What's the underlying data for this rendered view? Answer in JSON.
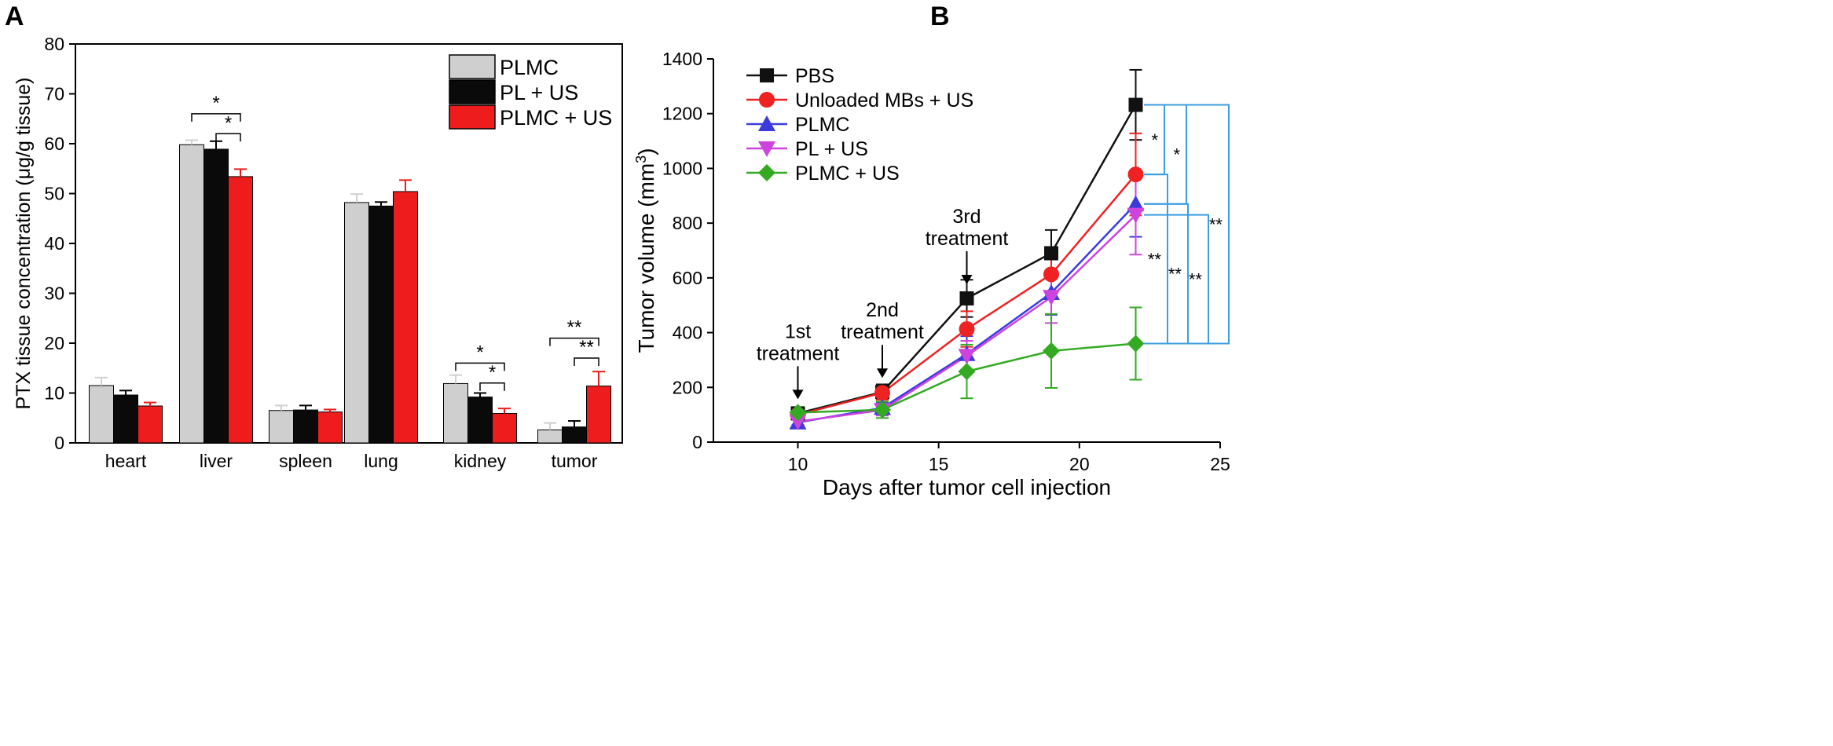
{
  "panels": {
    "a_label": "A",
    "b_label": "B"
  },
  "chart_data": [
    {
      "panel": "A",
      "type": "bar",
      "title": "",
      "xlabel": "",
      "ylabel": "PTX tissue concentration (μg/g tissue)",
      "ylim": [
        0,
        80
      ],
      "yticks": [
        0,
        10,
        20,
        30,
        40,
        50,
        60,
        70,
        80
      ],
      "categories": [
        "heart",
        "liver",
        "spleen",
        "lung",
        "kidney",
        "tumor"
      ],
      "series": [
        {
          "name": "PLMC",
          "color": "#cfcfcf",
          "values": [
            11.5,
            59.8,
            6.5,
            48.2,
            11.9,
            2.6
          ],
          "errors": [
            1.6,
            0.9,
            1.0,
            1.7,
            1.7,
            1.4
          ]
        },
        {
          "name": "PL + US",
          "color": "#0a0a0a",
          "values": [
            9.6,
            58.9,
            6.6,
            47.5,
            9.2,
            3.2
          ],
          "errors": [
            0.9,
            1.6,
            0.9,
            0.8,
            0.8,
            1.2
          ]
        },
        {
          "name": "PLMC + US",
          "color": "#ee1c1c",
          "values": [
            7.4,
            53.4,
            6.2,
            50.4,
            5.9,
            11.4
          ],
          "errors": [
            0.7,
            1.5,
            0.5,
            2.3,
            1.0,
            2.9
          ]
        }
      ],
      "legend_position": "top-right",
      "significance": [
        {
          "category": "liver",
          "from": "PLMC",
          "to": "PLMC + US",
          "y": 66,
          "label": "*"
        },
        {
          "category": "liver",
          "from": "PL + US",
          "to": "PLMC + US",
          "y": 62,
          "label": "*"
        },
        {
          "category": "kidney",
          "from": "PLMC",
          "to": "PLMC + US",
          "y": 16,
          "label": "*"
        },
        {
          "category": "kidney",
          "from": "PL + US",
          "to": "PLMC + US",
          "y": 12,
          "label": "*"
        },
        {
          "category": "tumor",
          "from": "PLMC",
          "to": "PLMC + US",
          "y": 21,
          "label": "**"
        },
        {
          "category": "tumor",
          "from": "PL + US",
          "to": "PLMC + US",
          "y": 17,
          "label": "**"
        }
      ]
    },
    {
      "panel": "B",
      "type": "line",
      "title": "",
      "xlabel": "Days after tumor cell injection",
      "ylabel": "Tumor volume (mm",
      "ylabel_sup": "3",
      "ylabel_close": ")",
      "xlim": [
        7,
        25
      ],
      "ylim": [
        0,
        1400
      ],
      "xticks": [
        10,
        15,
        20,
        25
      ],
      "yticks": [
        0,
        200,
        400,
        600,
        800,
        1000,
        1200,
        1400
      ],
      "x": [
        10,
        13,
        16,
        19,
        22
      ],
      "series": [
        {
          "name": "PBS",
          "color": "#111111",
          "marker": "square",
          "values": [
            105,
            183,
            525,
            690,
            1232
          ],
          "errors": [
            12,
            28,
            68,
            85,
            128
          ]
        },
        {
          "name": "Unloaded MBs + US",
          "color": "#ee2222",
          "marker": "circle",
          "values": [
            100,
            180,
            413,
            613,
            978
          ],
          "errors": [
            12,
            25,
            65,
            90,
            150
          ]
        },
        {
          "name": "PLMC",
          "color": "#3b3bdc",
          "marker": "triangle-up",
          "values": [
            72,
            125,
            322,
            545,
            870
          ],
          "errors": [
            12,
            20,
            65,
            80,
            120
          ]
        },
        {
          "name": "PL + US",
          "color": "#cc44dd",
          "marker": "triangle-down",
          "values": [
            75,
            117,
            315,
            530,
            830
          ],
          "errors": [
            12,
            20,
            55,
            95,
            145
          ]
        },
        {
          "name": "PLMC + US",
          "color": "#33aa22",
          "marker": "diamond",
          "values": [
            108,
            118,
            258,
            333,
            360
          ],
          "errors": [
            12,
            30,
            98,
            135,
            132
          ]
        }
      ],
      "legend_position": "top-left",
      "annotations": [
        {
          "x": 10,
          "y": 105,
          "line1": "1st",
          "line2": "treatment"
        },
        {
          "x": 13,
          "y": 183,
          "line1": "2nd",
          "line2": "treatment"
        },
        {
          "x": 16,
          "y": 525,
          "line1": "3rd",
          "line2": "treatment"
        }
      ],
      "significance_color": "#3a9ee0",
      "significance": [
        {
          "from": "PBS",
          "to": "Unloaded MBs + US",
          "label": "*"
        },
        {
          "from": "PBS",
          "to": "PLMC",
          "label": "*"
        },
        {
          "from": "Unloaded MBs + US",
          "to": "PLMC + US",
          "label": "**"
        },
        {
          "from": "PLMC",
          "to": "PLMC + US",
          "label": "**"
        },
        {
          "from": "PL + US",
          "to": "PLMC + US",
          "label": "**"
        },
        {
          "from": "PBS",
          "to": "PLMC + US",
          "label": "**"
        }
      ]
    }
  ]
}
